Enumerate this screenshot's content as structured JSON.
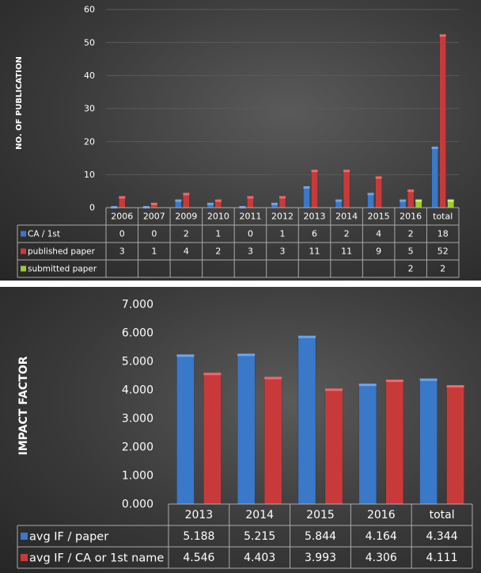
{
  "chart_data": [
    {
      "type": "bar",
      "title": "",
      "ylabel": "NO. OF PUBLICATION",
      "xlabel": "",
      "ylim": [
        0,
        60
      ],
      "yticks": [
        "0",
        "10",
        "20",
        "30",
        "40",
        "50",
        "60"
      ],
      "grid": true,
      "legend": "data-table",
      "categories": [
        "2006",
        "2007",
        "2009",
        "2010",
        "2011",
        "2012",
        "2013",
        "2014",
        "2015",
        "2016",
        "total"
      ],
      "series": [
        {
          "name": "CA / 1st",
          "color": "#3a78c8",
          "values": [
            0,
            0,
            2,
            1,
            0,
            1,
            6,
            2,
            4,
            2,
            18
          ],
          "labels": [
            "0",
            "0",
            "2",
            "1",
            "0",
            "1",
            "6",
            "2",
            "4",
            "2",
            "18"
          ]
        },
        {
          "name": "published paper",
          "color": "#c83a3a",
          "values": [
            3,
            1,
            4,
            2,
            3,
            3,
            11,
            11,
            9,
            5,
            52
          ],
          "labels": [
            "3",
            "1",
            "4",
            "2",
            "3",
            "3",
            "11",
            "11",
            "9",
            "5",
            "52"
          ]
        },
        {
          "name": "submitted paper",
          "color": "#9acd32",
          "values": [
            null,
            null,
            null,
            null,
            null,
            null,
            null,
            null,
            null,
            2,
            2
          ],
          "labels": [
            "",
            "",
            "",
            "",
            "",
            "",
            "",
            "",
            "",
            "2",
            "2"
          ]
        }
      ]
    },
    {
      "type": "bar",
      "title": "",
      "ylabel": "IMPACT FACTOR",
      "xlabel": "",
      "ylim": [
        0,
        7
      ],
      "yticks": [
        "0.000",
        "1.000",
        "2.000",
        "3.000",
        "4.000",
        "5.000",
        "6.000",
        "7.000"
      ],
      "grid": false,
      "legend": "data-table",
      "categories": [
        "2013",
        "2014",
        "2015",
        "2016",
        "total"
      ],
      "series": [
        {
          "name": "avg IF / paper",
          "color": "#3a78c8",
          "values": [
            5.188,
            5.215,
            5.844,
            4.164,
            4.344
          ],
          "labels": [
            "5.188",
            "5.215",
            "5.844",
            "4.164",
            "4.344"
          ]
        },
        {
          "name": "avg IF / CA or 1st name",
          "color": "#c83a3a",
          "values": [
            4.546,
            4.403,
            3.993,
            4.306,
            4.111
          ],
          "labels": [
            "4.546",
            "4.403",
            "3.993",
            "4.306",
            "4.111"
          ]
        }
      ]
    }
  ]
}
